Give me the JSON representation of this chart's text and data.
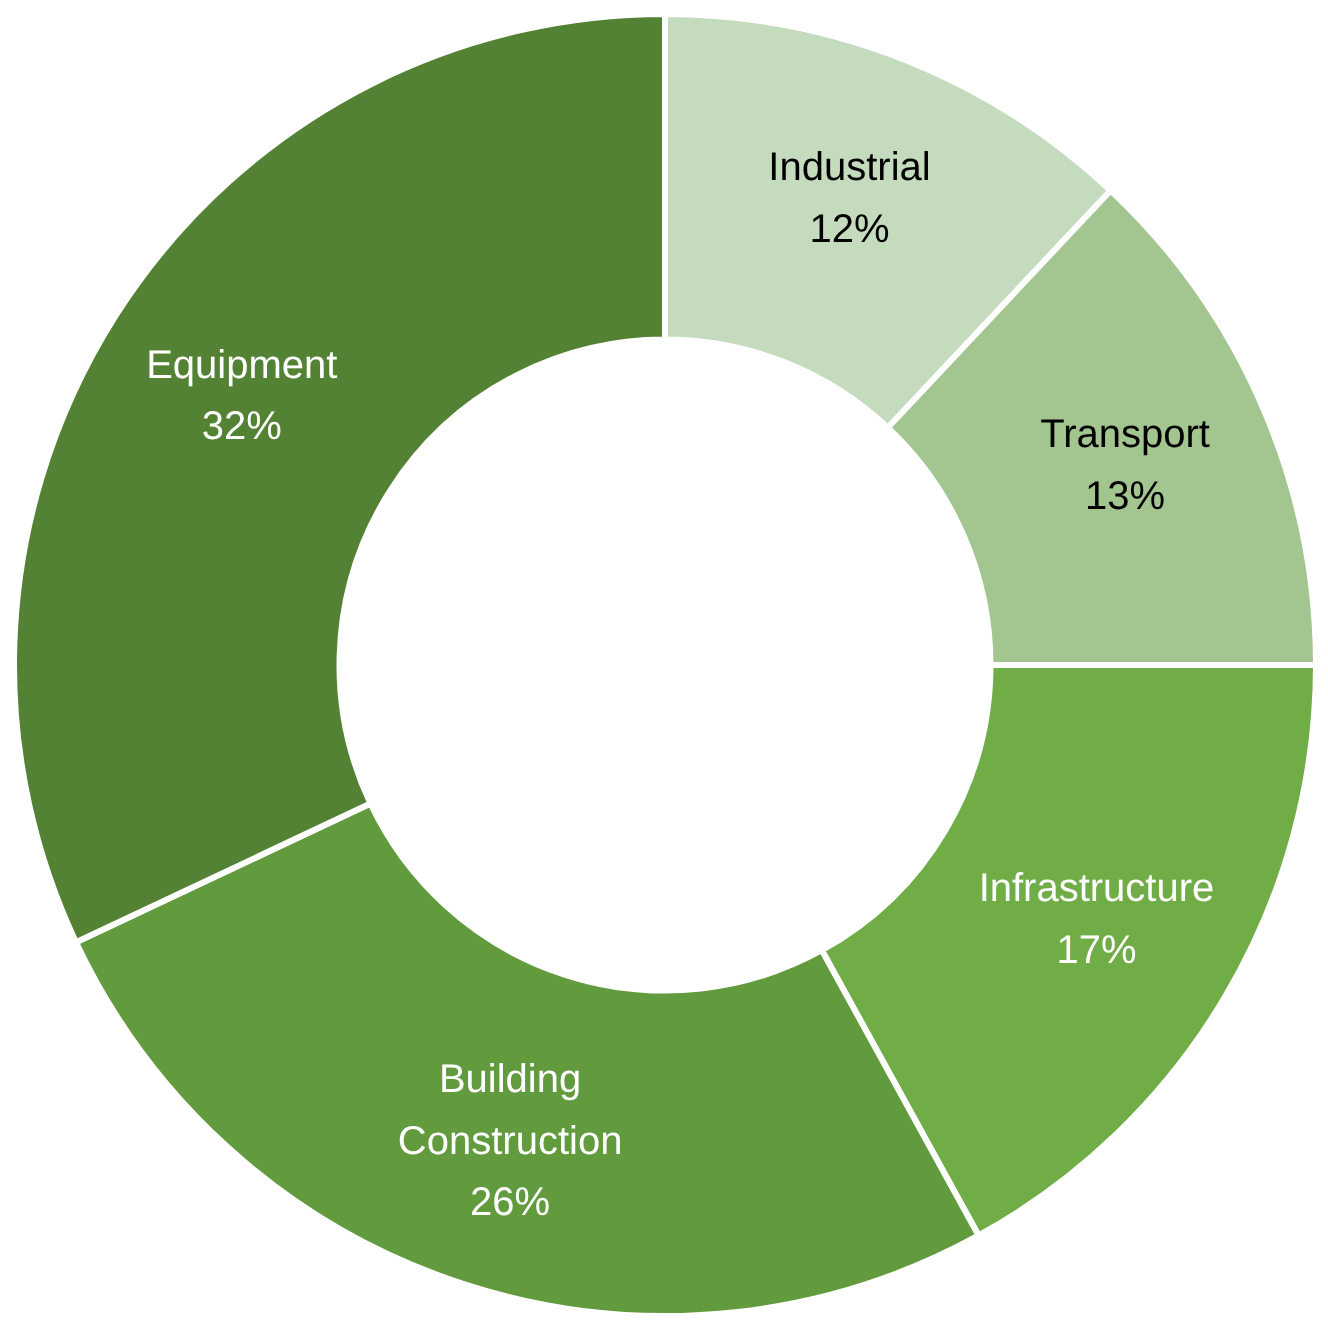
{
  "chart_data": {
    "type": "donut",
    "categories": [
      "Industrial",
      "Transport",
      "Infrastructure",
      "Building Construction",
      "Equipment"
    ],
    "values": [
      12,
      13,
      17,
      26,
      32
    ],
    "value_labels": [
      "12%",
      "13%",
      "17%",
      "26%",
      "32%"
    ],
    "colors": [
      "#c5dbbd",
      "#a3c58f",
      "#70ad47",
      "#629a3e",
      "#548235"
    ]
  }
}
